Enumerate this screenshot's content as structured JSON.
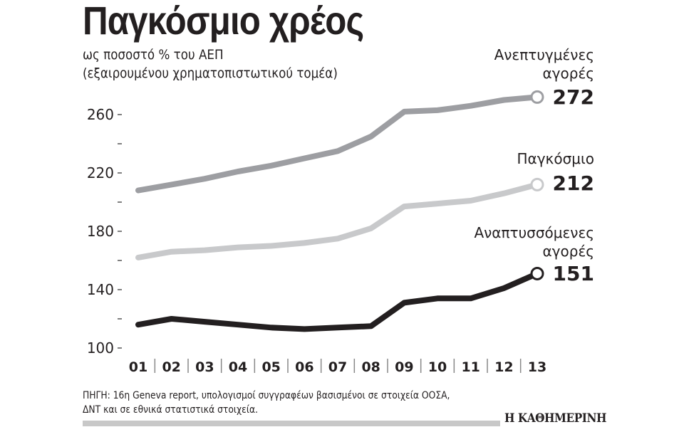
{
  "header": {
    "title": "Παγκόσμιο χρέος",
    "subtitle_line1": "ως ποσοστό % του ΑΕΠ",
    "subtitle_line2": "(εξαιρουμένου χρηματοπιστωτικού τομέα)"
  },
  "source": {
    "line1": "ΠΗΓΗ: 16η Geneva report, υπολογισμοί συγγραφέων βασισμένοι σε στοιχεία ΟΟΣΑ,",
    "line2": "ΔΝΤ και σε εθνικά στατιστικά στοιχεία."
  },
  "logo": "Η ΚΑΘΗΜΕΡΙΝΗ",
  "labels": {
    "developed_line1": "Ανεπτυγμένες",
    "developed_line2": "αγορές",
    "developed_value": "272",
    "global_line1": "Παγκόσμιο",
    "global_value": "212",
    "emerging_line1": "Αναπτυσσόμενες",
    "emerging_line2": "αγορές",
    "emerging_value": "151"
  },
  "colors": {
    "developed": "#9d9ea2",
    "global": "#c8c9cb",
    "emerging": "#231f20",
    "text": "#231f20"
  },
  "chart_data": {
    "type": "line",
    "title": "Παγκόσμιο χρέος",
    "subtitle": "ως ποσοστό % του ΑΕΠ (εξαιρουμένου χρηματοπιστωτικού τομέα)",
    "xlabel": "",
    "ylabel": "",
    "x": [
      "01",
      "02",
      "03",
      "04",
      "05",
      "06",
      "07",
      "08",
      "09",
      "10",
      "11",
      "12",
      "13"
    ],
    "yticks": [
      100,
      140,
      180,
      220,
      260
    ],
    "yminor": [
      120,
      160,
      200,
      240
    ],
    "ylim": [
      100,
      270
    ],
    "grid": false,
    "legend_position": "inline-right",
    "series": [
      {
        "name": "Ανεπτυγμένες αγορές",
        "values": [
          208,
          212,
          216,
          221,
          225,
          230,
          235,
          245,
          262,
          263,
          266,
          270,
          272
        ]
      },
      {
        "name": "Παγκόσμιο",
        "values": [
          162,
          166,
          167,
          169,
          170,
          172,
          175,
          182,
          197,
          199,
          201,
          206,
          212
        ]
      },
      {
        "name": "Αναπτυσσόμενες αγορές",
        "values": [
          116,
          120,
          118,
          116,
          114,
          113,
          114,
          115,
          131,
          134,
          134,
          141,
          151
        ]
      }
    ],
    "annotations": [
      {
        "series": "Ανεπτυγμένες αγορές",
        "x": "13",
        "text": "272"
      },
      {
        "series": "Παγκόσμιο",
        "x": "13",
        "text": "212"
      },
      {
        "series": "Αναπτυσσόμενες αγορές",
        "x": "13",
        "text": "151"
      }
    ]
  }
}
